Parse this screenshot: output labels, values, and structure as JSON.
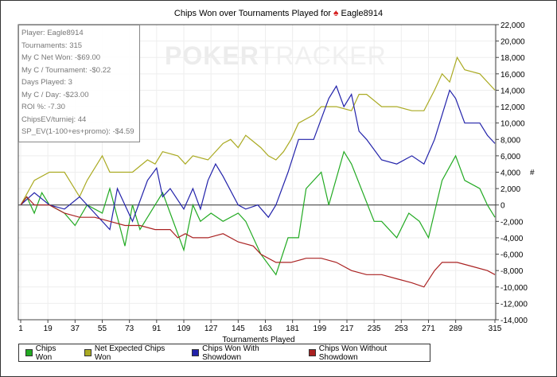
{
  "chart_data": {
    "type": "line",
    "title": "Chips Won over Tournaments Played for",
    "player": "Eagle8914",
    "xlabel": "Tournaments Played",
    "ylabel": "#",
    "xlim": [
      1,
      315
    ],
    "ylim": [
      -14000,
      22000
    ],
    "xticks": [
      1,
      19,
      37,
      55,
      73,
      91,
      109,
      127,
      145,
      163,
      181,
      199,
      217,
      235,
      253,
      271,
      289,
      315
    ],
    "yticks": [
      22000,
      20000,
      18000,
      16000,
      14000,
      12000,
      10000,
      8000,
      6000,
      4000,
      2000,
      0,
      -2000,
      -4000,
      -6000,
      -8000,
      -10000,
      -12000,
      -14000
    ],
    "ytick_labels": [
      "22,000",
      "20,000",
      "18,000",
      "16,000",
      "14,000",
      "12,000",
      "10,000",
      "8,000",
      "6,000",
      "4,000",
      "2,000",
      "0",
      "-2,000",
      "-4,000",
      "-6,000",
      "-8,000",
      "-10,000",
      "-12,000",
      "-14,000"
    ],
    "legend_position": "bottom-left",
    "series": [
      {
        "name": "Chips Won",
        "color": "#22aa22",
        "points": [
          [
            1,
            0
          ],
          [
            5,
            1000
          ],
          [
            10,
            -1000
          ],
          [
            15,
            1500
          ],
          [
            20,
            0
          ],
          [
            30,
            -1000
          ],
          [
            37,
            -2500
          ],
          [
            45,
            0
          ],
          [
            55,
            -1000
          ],
          [
            60,
            2000
          ],
          [
            70,
            -5000
          ],
          [
            75,
            0
          ],
          [
            80,
            -3000
          ],
          [
            90,
            0
          ],
          [
            95,
            1500
          ],
          [
            100,
            -1000
          ],
          [
            109,
            -5500
          ],
          [
            115,
            0
          ],
          [
            120,
            -2000
          ],
          [
            127,
            -1000
          ],
          [
            135,
            -2000
          ],
          [
            145,
            -1000
          ],
          [
            150,
            -2000
          ],
          [
            160,
            -6000
          ],
          [
            170,
            -8500
          ],
          [
            178,
            -4000
          ],
          [
            185,
            -4000
          ],
          [
            190,
            2000
          ],
          [
            200,
            4000
          ],
          [
            205,
            0
          ],
          [
            215,
            6500
          ],
          [
            220,
            5000
          ],
          [
            235,
            -2000
          ],
          [
            240,
            -2000
          ],
          [
            250,
            -4000
          ],
          [
            258,
            -1000
          ],
          [
            265,
            -2000
          ],
          [
            271,
            -4000
          ],
          [
            280,
            3000
          ],
          [
            289,
            6000
          ],
          [
            295,
            3000
          ],
          [
            305,
            2000
          ],
          [
            310,
            0
          ],
          [
            315,
            -1500
          ]
        ]
      },
      {
        "name": "Net Expected Chips Won",
        "color": "#aaaa22",
        "points": [
          [
            1,
            0
          ],
          [
            10,
            3000
          ],
          [
            20,
            4000
          ],
          [
            30,
            4000
          ],
          [
            40,
            1000
          ],
          [
            45,
            3000
          ],
          [
            55,
            6000
          ],
          [
            60,
            4000
          ],
          [
            65,
            4000
          ],
          [
            75,
            4000
          ],
          [
            85,
            5500
          ],
          [
            90,
            5000
          ],
          [
            95,
            6500
          ],
          [
            105,
            6000
          ],
          [
            110,
            5000
          ],
          [
            115,
            6000
          ],
          [
            125,
            5500
          ],
          [
            135,
            7500
          ],
          [
            140,
            8000
          ],
          [
            145,
            7000
          ],
          [
            150,
            8500
          ],
          [
            160,
            7000
          ],
          [
            165,
            6000
          ],
          [
            170,
            5500
          ],
          [
            175,
            6500
          ],
          [
            180,
            8000
          ],
          [
            185,
            10000
          ],
          [
            195,
            11000
          ],
          [
            200,
            12000
          ],
          [
            210,
            12000
          ],
          [
            220,
            11500
          ],
          [
            225,
            13500
          ],
          [
            230,
            13500
          ],
          [
            240,
            12000
          ],
          [
            250,
            12000
          ],
          [
            260,
            11500
          ],
          [
            268,
            11500
          ],
          [
            275,
            14000
          ],
          [
            280,
            16000
          ],
          [
            285,
            15000
          ],
          [
            290,
            18000
          ],
          [
            295,
            16500
          ],
          [
            305,
            16000
          ],
          [
            315,
            14000
          ]
        ]
      },
      {
        "name": "Chips Won With Showdown",
        "color": "#2222aa",
        "points": [
          [
            1,
            0
          ],
          [
            10,
            1500
          ],
          [
            20,
            0
          ],
          [
            30,
            -500
          ],
          [
            40,
            1000
          ],
          [
            50,
            -1000
          ],
          [
            60,
            -3000
          ],
          [
            65,
            2000
          ],
          [
            75,
            -2000
          ],
          [
            85,
            3000
          ],
          [
            91,
            4500
          ],
          [
            95,
            1000
          ],
          [
            100,
            2000
          ],
          [
            109,
            -500
          ],
          [
            115,
            2000
          ],
          [
            120,
            -500
          ],
          [
            125,
            3000
          ],
          [
            130,
            5000
          ],
          [
            135,
            3500
          ],
          [
            145,
            0
          ],
          [
            150,
            -500
          ],
          [
            158,
            0
          ],
          [
            165,
            -1500
          ],
          [
            170,
            0
          ],
          [
            178,
            4000
          ],
          [
            185,
            8000
          ],
          [
            195,
            8000
          ],
          [
            205,
            13000
          ],
          [
            210,
            14500
          ],
          [
            215,
            12000
          ],
          [
            220,
            13500
          ],
          [
            225,
            9000
          ],
          [
            230,
            8000
          ],
          [
            240,
            5500
          ],
          [
            250,
            5000
          ],
          [
            260,
            6000
          ],
          [
            268,
            5000
          ],
          [
            275,
            8000
          ],
          [
            285,
            14000
          ],
          [
            289,
            13000
          ],
          [
            295,
            10000
          ],
          [
            305,
            10000
          ],
          [
            310,
            8500
          ],
          [
            315,
            7500
          ]
        ]
      },
      {
        "name": "Chips Won Without Showdown",
        "color": "#aa2222",
        "points": [
          [
            1,
            0
          ],
          [
            5,
            1000
          ],
          [
            10,
            0
          ],
          [
            20,
            0
          ],
          [
            30,
            -1000
          ],
          [
            40,
            -1500
          ],
          [
            50,
            -1500
          ],
          [
            60,
            -2000
          ],
          [
            70,
            -2500
          ],
          [
            80,
            -2500
          ],
          [
            90,
            -3000
          ],
          [
            100,
            -3000
          ],
          [
            105,
            -4000
          ],
          [
            110,
            -3500
          ],
          [
            115,
            -4000
          ],
          [
            125,
            -4000
          ],
          [
            135,
            -3500
          ],
          [
            145,
            -4500
          ],
          [
            155,
            -5000
          ],
          [
            160,
            -6000
          ],
          [
            170,
            -7000
          ],
          [
            180,
            -7000
          ],
          [
            190,
            -6500
          ],
          [
            200,
            -6500
          ],
          [
            210,
            -7000
          ],
          [
            220,
            -8000
          ],
          [
            230,
            -8500
          ],
          [
            240,
            -8500
          ],
          [
            250,
            -9000
          ],
          [
            260,
            -9500
          ],
          [
            268,
            -10000
          ],
          [
            275,
            -8000
          ],
          [
            280,
            -7000
          ],
          [
            290,
            -7000
          ],
          [
            300,
            -7500
          ],
          [
            310,
            -8000
          ],
          [
            315,
            -8500
          ]
        ]
      }
    ]
  },
  "stats": [
    "Player: Eagle8914",
    "Tournaments: 315",
    "My C Net Won: -$69.00",
    "My C / Tournament: -$0.22",
    "Days Played: 3",
    "My C / Day: -$23.00",
    "ROI %: -7.30",
    "ChipsEV/turniej: 44",
    "SP_EV(1-100+es+promo): -$4.59"
  ],
  "watermark": {
    "bold": "POKER",
    "light": "TRACKER"
  }
}
